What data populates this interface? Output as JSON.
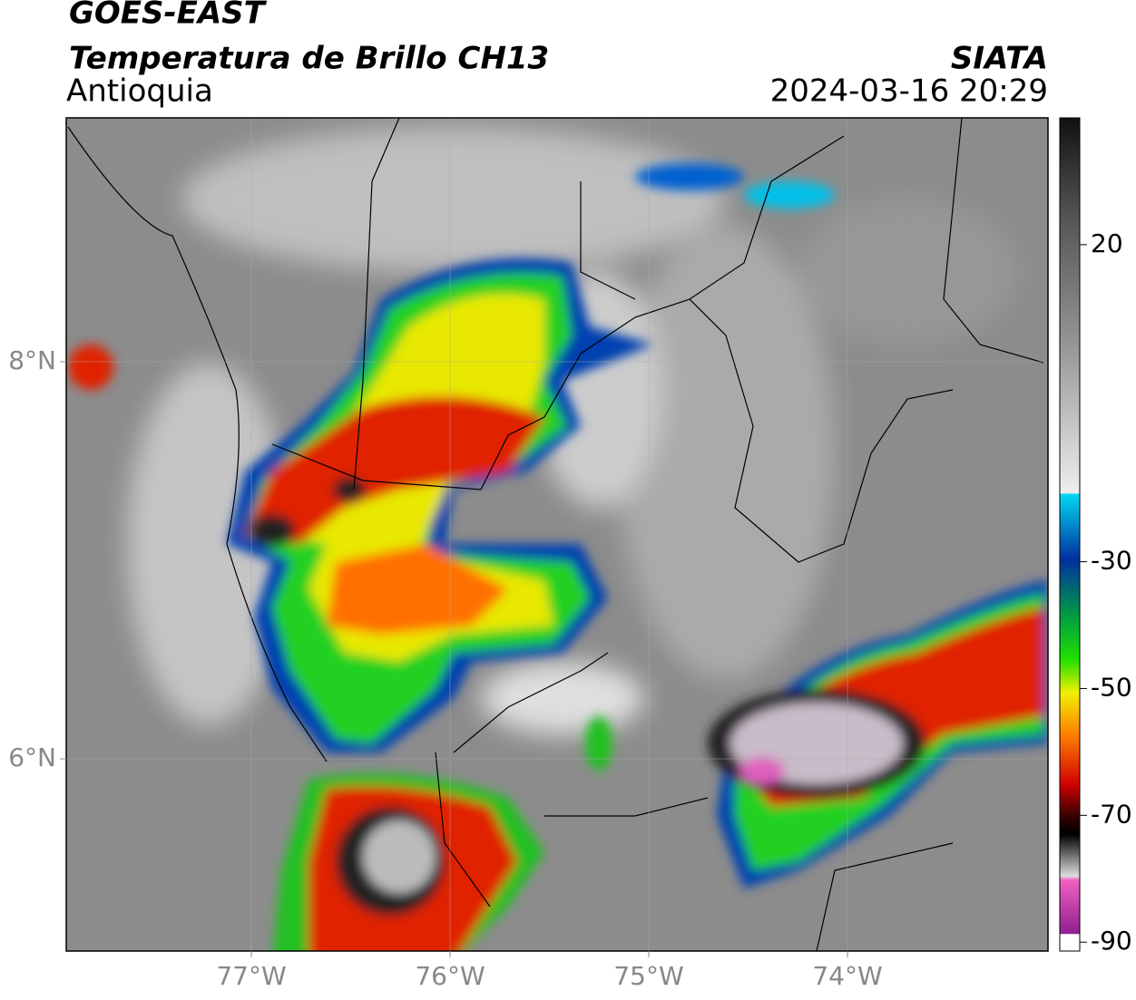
{
  "header": {
    "satellite": "GOES-EAST",
    "product": "Temperatura de Brillo CH13",
    "region": "Antioquia",
    "source": "SIATA",
    "datetime": "2024-03-16 20:29"
  },
  "map": {
    "lat_labels": [
      "8°N",
      "6°N"
    ],
    "lon_labels": [
      "77°W",
      "76°W",
      "75°W",
      "74°W"
    ]
  },
  "colorbar": {
    "lim": [
      -91.4,
      40
    ],
    "ticks": [
      20,
      -30,
      -50,
      -70,
      -90
    ]
  }
}
